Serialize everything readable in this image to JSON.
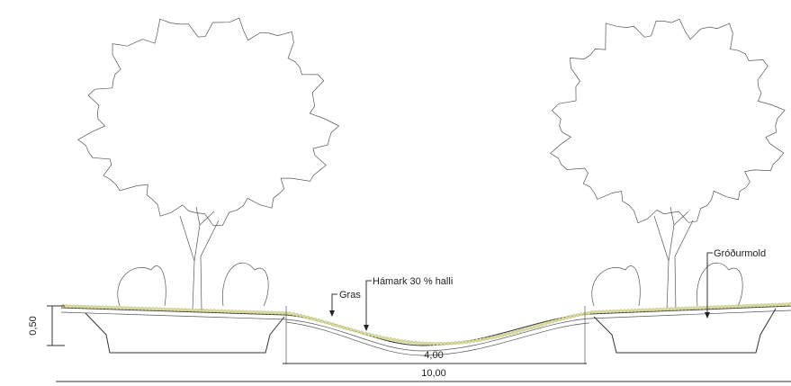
{
  "labels": {
    "grass": "Gras",
    "max_slope": "Hámark 30 % halli",
    "topsoil": "Gróðurmold"
  },
  "dimensions": {
    "depth": "0,50",
    "swale_width": "4,00",
    "total_width": "10,00"
  }
}
